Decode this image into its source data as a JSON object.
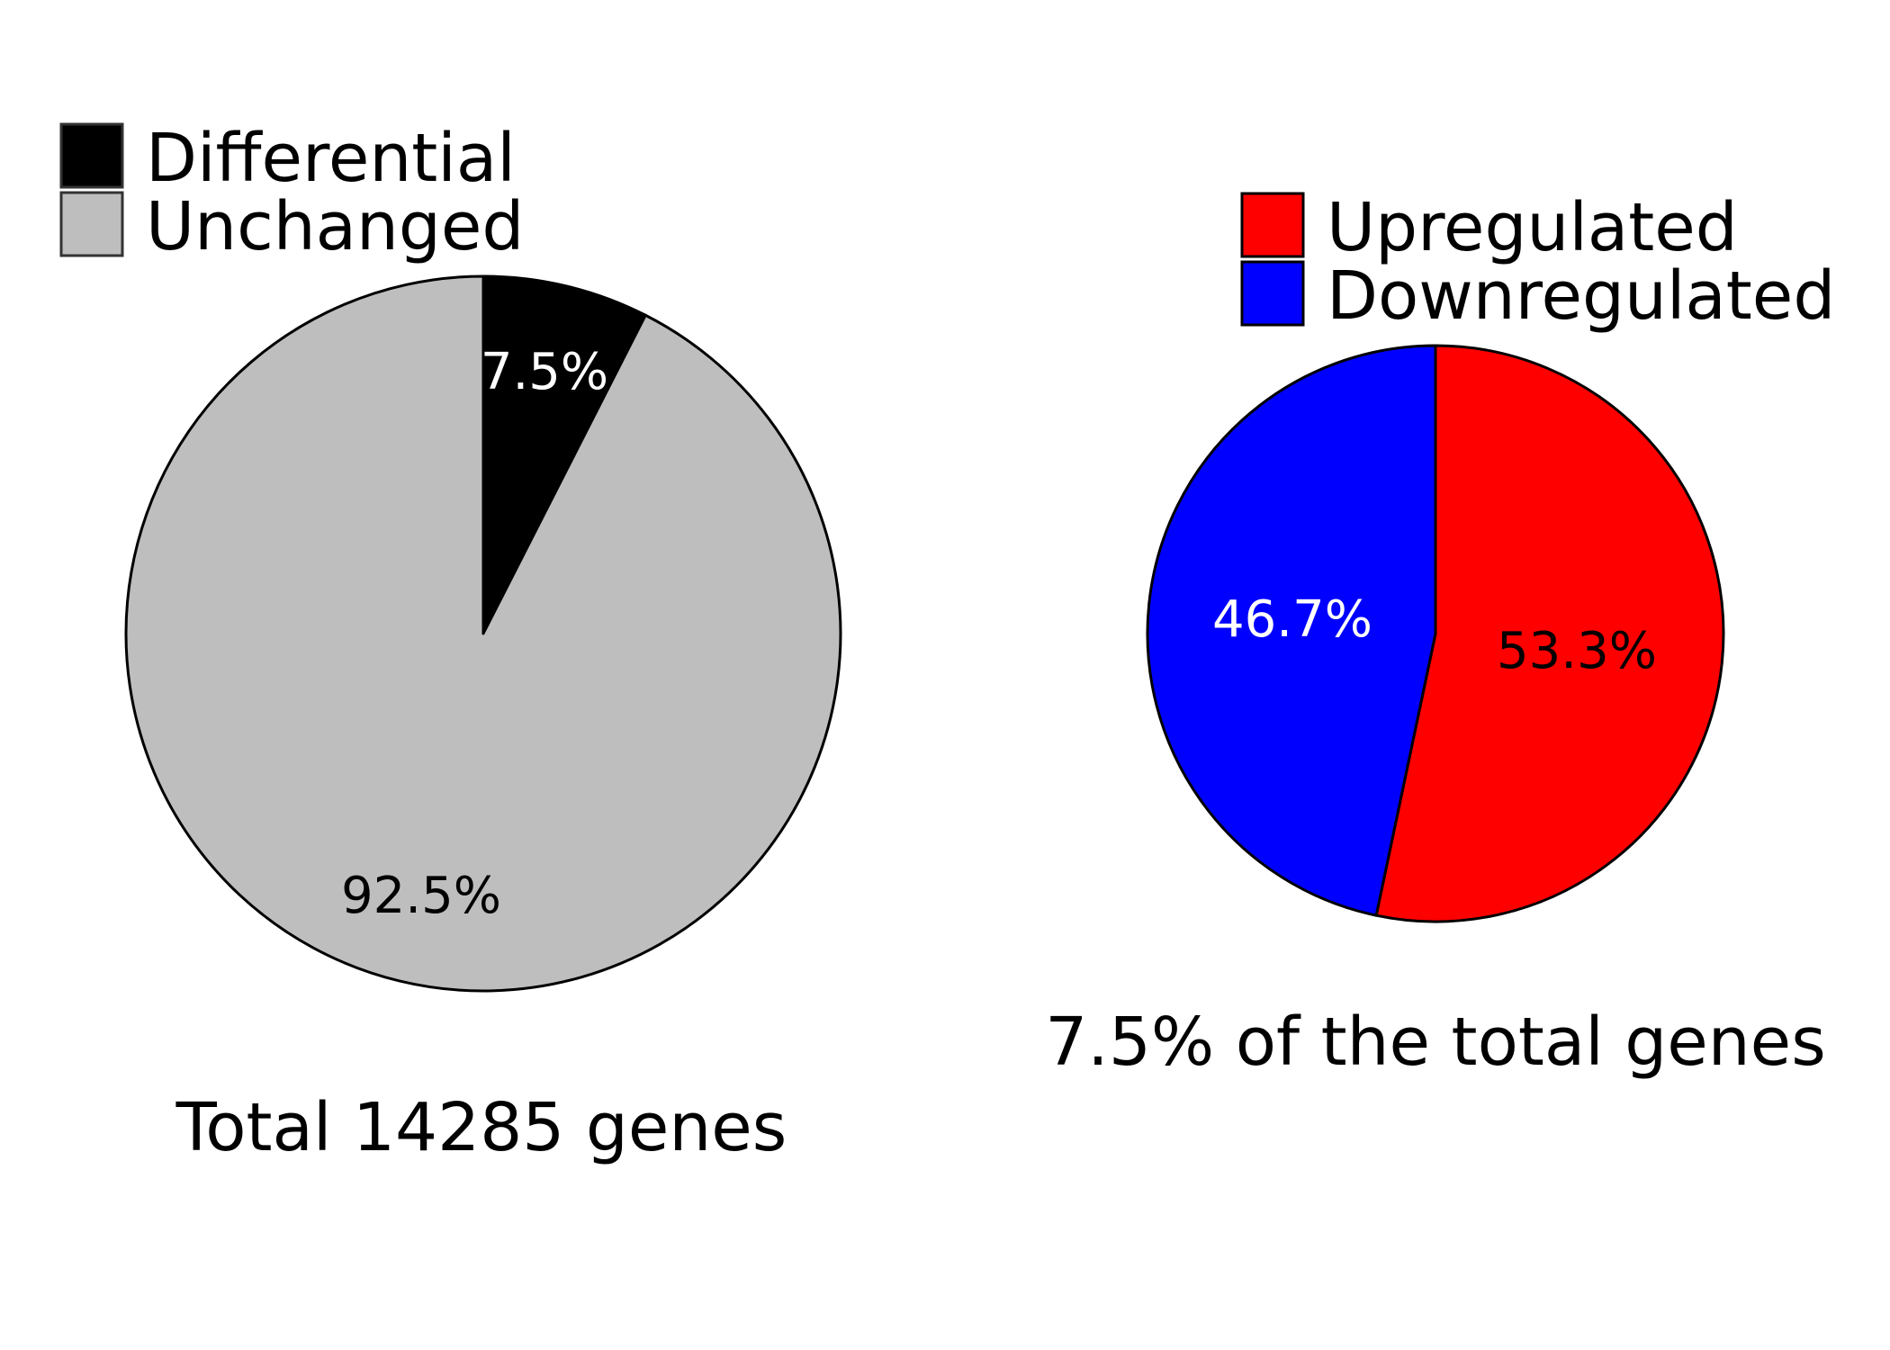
{
  "chart_data": [
    {
      "type": "pie",
      "title": "",
      "caption": "Total 14285 genes",
      "start_angle_deg": 0,
      "direction": "clockwise",
      "legend_position": "top-left",
      "slices": [
        {
          "name": "Differential",
          "value": 7.5,
          "label": "7.5%",
          "color": "#000000",
          "label_color": "#ffffff"
        },
        {
          "name": "Unchanged",
          "value": 92.5,
          "label": "92.5%",
          "color": "#bebebe",
          "label_color": "#000000"
        }
      ]
    },
    {
      "type": "pie",
      "title": "",
      "caption": "7.5% of the total genes",
      "start_angle_deg": 0,
      "direction": "clockwise",
      "legend_position": "top-right",
      "slices": [
        {
          "name": "Upregulated",
          "value": 53.3,
          "label": "53.3%",
          "color": "#ff0000",
          "label_color": "#000000"
        },
        {
          "name": "Downregulated",
          "value": 46.7,
          "label": "46.7%",
          "color": "#0000ff",
          "label_color": "#ffffff"
        }
      ]
    }
  ]
}
